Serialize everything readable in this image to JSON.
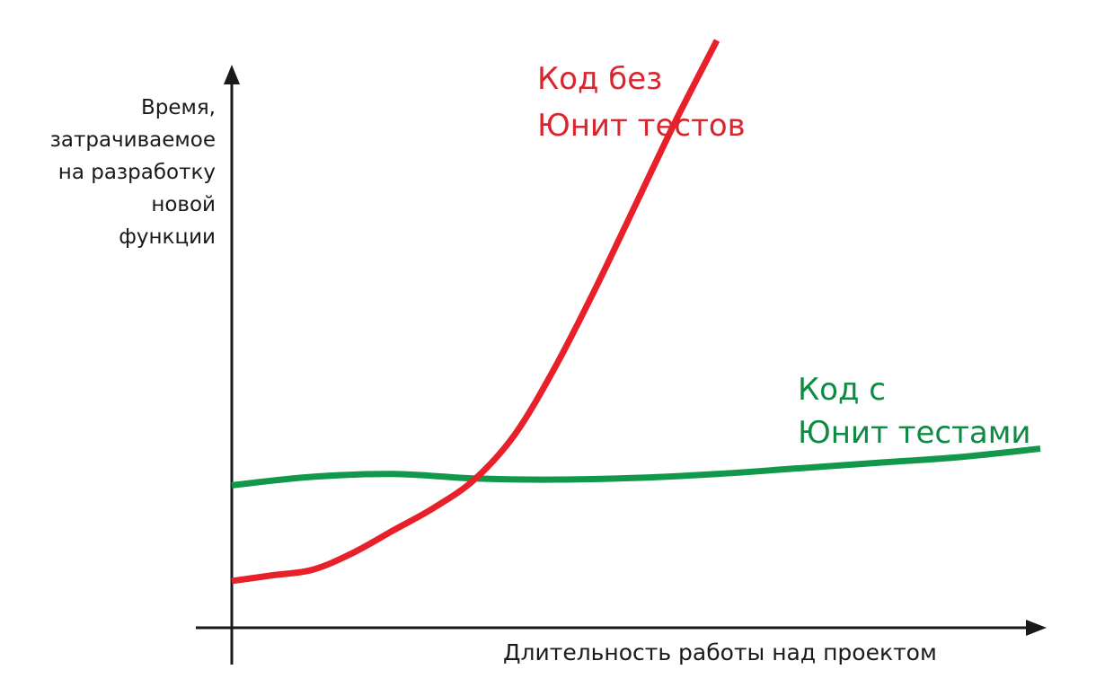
{
  "chart_data": {
    "type": "line",
    "xlabel": "Длительность работы над проектом",
    "ylabel_lines": [
      "Время,",
      "затрачиваемое",
      "на разработку",
      "новой",
      "функции"
    ],
    "x_range": [
      0,
      100
    ],
    "y_range": [
      0,
      100
    ],
    "grid": false,
    "ticks": false,
    "series": [
      {
        "name_lines": [
          "Код без",
          "Юнит тестов"
        ],
        "color": "#e8202a",
        "points": [
          [
            0,
            4
          ],
          [
            5,
            5
          ],
          [
            10,
            6
          ],
          [
            15,
            9
          ],
          [
            20,
            13
          ],
          [
            25,
            17
          ],
          [
            30,
            22
          ],
          [
            35,
            30
          ],
          [
            40,
            42
          ],
          [
            45,
            56
          ],
          [
            50,
            71
          ],
          [
            55,
            86
          ],
          [
            60,
            100
          ]
        ]
      },
      {
        "name_lines": [
          "Код с",
          "Юнит тестами"
        ],
        "color": "#11984a",
        "points": [
          [
            0,
            21
          ],
          [
            10,
            22.5
          ],
          [
            20,
            23
          ],
          [
            30,
            22.2
          ],
          [
            40,
            22
          ],
          [
            50,
            22.3
          ],
          [
            60,
            23
          ],
          [
            70,
            24
          ],
          [
            80,
            25
          ],
          [
            90,
            26
          ],
          [
            100,
            27.5
          ]
        ]
      }
    ]
  }
}
